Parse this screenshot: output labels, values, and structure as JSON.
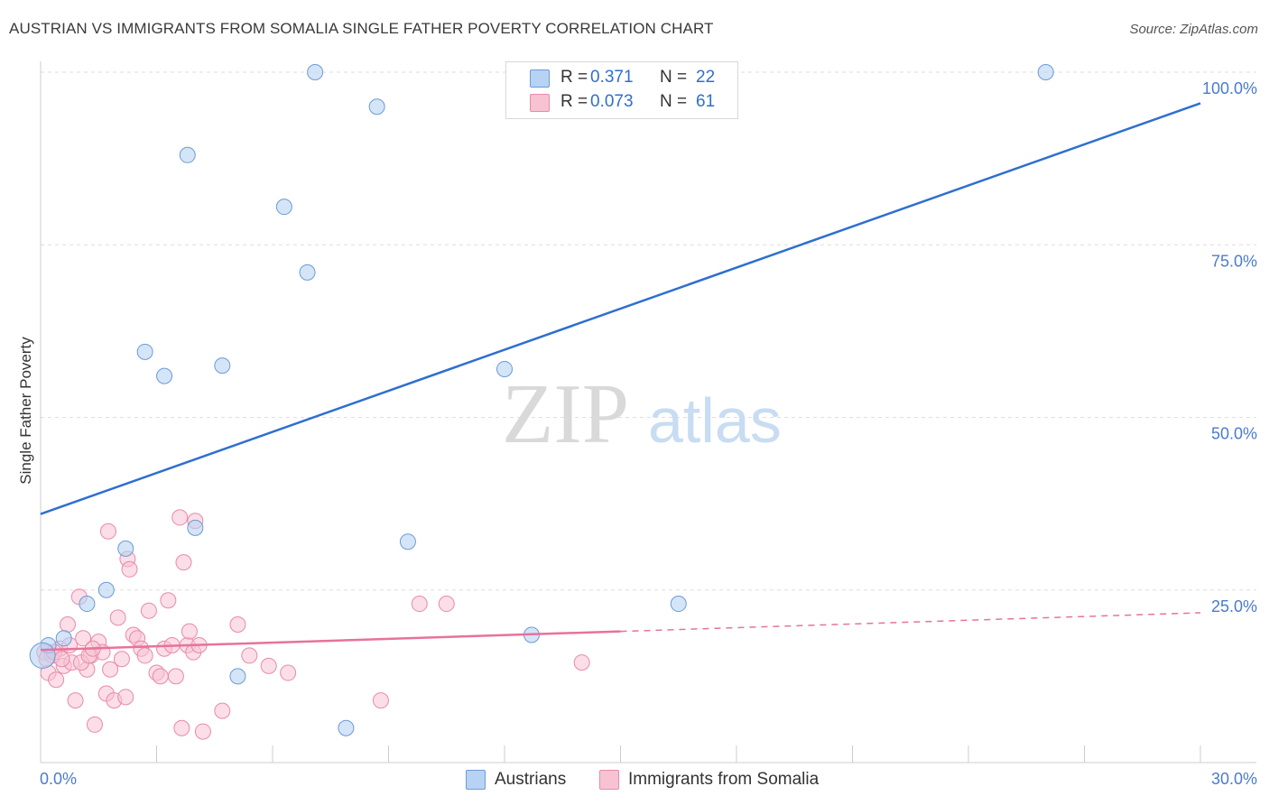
{
  "title": "AUSTRIAN VS IMMIGRANTS FROM SOMALIA SINGLE FATHER POVERTY CORRELATION CHART",
  "source": "Source: ZipAtlas.com",
  "watermark": {
    "zip": "ZIP",
    "atlas": "atlas"
  },
  "legend": {
    "rows": [
      {
        "r_label": "R =",
        "r_value": "0.371",
        "n_label": "N =",
        "n_value": "22"
      },
      {
        "r_label": "R =",
        "r_value": "0.073",
        "n_label": "N =",
        "n_value": "61"
      }
    ]
  },
  "bottom_legend": {
    "series1": "Austrians",
    "series2": "Immigrants from Somalia"
  },
  "colors": {
    "blue_fill": "#b7d3f4",
    "blue_stroke": "#6d9ad6",
    "blue_line": "#2e6fcf",
    "pink_fill": "#f7c3d3",
    "pink_stroke": "#e98aa8",
    "pink_line": "#e8729a",
    "axis_text": "#4a7bd0",
    "grid": "#dedede"
  },
  "chart_data": {
    "type": "scatter",
    "title": "AUSTRIAN VS IMMIGRANTS FROM SOMALIA SINGLE FATHER POVERTY CORRELATION CHART",
    "xlabel": "",
    "ylabel": "Single Father Poverty",
    "xlim": [
      0,
      30
    ],
    "ylim": [
      0,
      100
    ],
    "x_tick_labels": [
      "0.0%",
      "30.0%"
    ],
    "y_tick_values": [
      25,
      50,
      75,
      100
    ],
    "y_tick_labels": [
      "25.0%",
      "50.0%",
      "75.0%",
      "100.0%"
    ],
    "series": [
      {
        "name": "Austrians",
        "R": 0.371,
        "N": 22,
        "points": [
          [
            0.2,
            17.0
          ],
          [
            0.6,
            18.0
          ],
          [
            1.2,
            23.0
          ],
          [
            1.7,
            25.0
          ],
          [
            2.2,
            31.0
          ],
          [
            2.7,
            59.5
          ],
          [
            3.2,
            56.0
          ],
          [
            3.8,
            88.0
          ],
          [
            4.0,
            34.0
          ],
          [
            4.7,
            57.5
          ],
          [
            5.1,
            12.5
          ],
          [
            6.3,
            80.5
          ],
          [
            6.9,
            71.0
          ],
          [
            7.1,
            100.0
          ],
          [
            7.9,
            5.0
          ],
          [
            8.7,
            95.0
          ],
          [
            9.5,
            32.0
          ],
          [
            12.0,
            57.0
          ],
          [
            12.7,
            18.5
          ],
          [
            16.5,
            23.0
          ],
          [
            26.0,
            100.0
          ],
          [
            0.05,
            15.5
          ]
        ],
        "trendline": {
          "x": [
            0,
            30
          ],
          "y": [
            36.0,
            95.5
          ],
          "style": "solid"
        }
      },
      {
        "name": "Immigrants from Somalia",
        "R": 0.073,
        "N": 61,
        "points": [
          [
            0.1,
            16.0
          ],
          [
            0.2,
            13.0
          ],
          [
            0.3,
            15.5
          ],
          [
            0.4,
            12.0
          ],
          [
            0.5,
            16.5
          ],
          [
            0.6,
            14.0
          ],
          [
            0.7,
            20.0
          ],
          [
            0.8,
            14.5
          ],
          [
            0.9,
            9.0
          ],
          [
            1.0,
            24.0
          ],
          [
            1.1,
            18.0
          ],
          [
            1.2,
            13.5
          ],
          [
            1.3,
            15.5
          ],
          [
            1.4,
            5.5
          ],
          [
            1.5,
            17.5
          ],
          [
            1.6,
            16.0
          ],
          [
            1.7,
            10.0
          ],
          [
            1.75,
            33.5
          ],
          [
            1.8,
            13.5
          ],
          [
            1.9,
            9.0
          ],
          [
            2.0,
            21.0
          ],
          [
            2.1,
            15.0
          ],
          [
            2.2,
            9.5
          ],
          [
            2.25,
            29.5
          ],
          [
            2.3,
            28.0
          ],
          [
            2.4,
            18.5
          ],
          [
            2.5,
            18.0
          ],
          [
            2.6,
            16.5
          ],
          [
            2.7,
            15.5
          ],
          [
            2.8,
            22.0
          ],
          [
            3.0,
            13.0
          ],
          [
            3.1,
            12.5
          ],
          [
            3.2,
            16.5
          ],
          [
            3.3,
            23.5
          ],
          [
            3.4,
            17.0
          ],
          [
            3.5,
            12.5
          ],
          [
            3.6,
            35.5
          ],
          [
            3.65,
            5.0
          ],
          [
            3.7,
            29.0
          ],
          [
            3.8,
            17.0
          ],
          [
            3.85,
            19.0
          ],
          [
            3.95,
            16.0
          ],
          [
            4.0,
            35.0
          ],
          [
            4.1,
            17.0
          ],
          [
            4.2,
            4.5
          ],
          [
            4.7,
            7.5
          ],
          [
            5.1,
            20.0
          ],
          [
            5.4,
            15.5
          ],
          [
            5.9,
            14.0
          ],
          [
            6.4,
            13.0
          ],
          [
            8.8,
            9.0
          ],
          [
            9.8,
            23.0
          ],
          [
            10.5,
            23.0
          ],
          [
            14.0,
            14.5
          ],
          [
            0.15,
            15.0
          ],
          [
            0.35,
            16.0
          ],
          [
            0.55,
            15.0
          ],
          [
            0.75,
            17.0
          ],
          [
            1.05,
            14.5
          ],
          [
            1.25,
            15.5
          ],
          [
            1.35,
            16.5
          ]
        ],
        "trendline": {
          "x": [
            0,
            15
          ],
          "y": [
            16.3,
            19.0
          ],
          "style": "solid"
        },
        "trendline_extension": {
          "x": [
            15,
            30
          ],
          "y": [
            19.0,
            21.7
          ],
          "style": "dashed"
        }
      }
    ]
  }
}
